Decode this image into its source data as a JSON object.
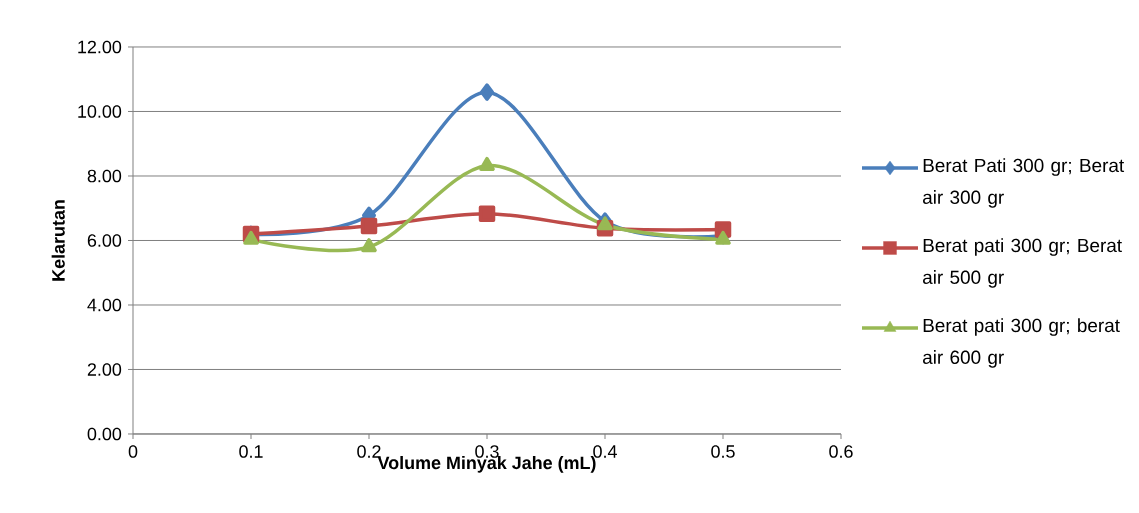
{
  "chart_data": {
    "type": "line",
    "xlabel": "Volume Minyak Jahe (mL)",
    "ylabel": "Kelarutan",
    "x": [
      0.1,
      0.2,
      0.3,
      0.4,
      0.5
    ],
    "series": [
      {
        "name": "Berat Pati 300  gr; Berat air 300 gr",
        "color": "#4a7ebb",
        "marker": "diamond",
        "values": [
          6.19,
          6.78,
          10.6,
          6.6,
          6.15
        ]
      },
      {
        "name": "Berat pati 300 gr; Berat air 500 gr",
        "color": "#be4b48",
        "marker": "square",
        "values": [
          6.2,
          6.45,
          6.83,
          6.38,
          6.34
        ]
      },
      {
        "name": "Berat pati 300 gr; berat air 600 gr",
        "color": "#98b954",
        "marker": "triangle",
        "values": [
          6.03,
          5.8,
          8.32,
          6.48,
          6.03
        ]
      }
    ],
    "xlim": [
      0,
      0.6
    ],
    "xticks": [
      0,
      0.1,
      0.2,
      0.3,
      0.4,
      0.5,
      0.6
    ],
    "ylim": [
      0,
      12
    ],
    "yticks": [
      {
        "value": 0,
        "label": "0.00"
      },
      {
        "value": 2,
        "label": "2.00"
      },
      {
        "value": 4,
        "label": "4.00"
      },
      {
        "value": 6,
        "label": "6.00"
      },
      {
        "value": 8,
        "label": "8.00"
      },
      {
        "value": 10,
        "label": "10.00"
      },
      {
        "value": 12,
        "label": "12.00"
      }
    ],
    "grid": "y",
    "legend": "right",
    "line_style": "solid"
  }
}
